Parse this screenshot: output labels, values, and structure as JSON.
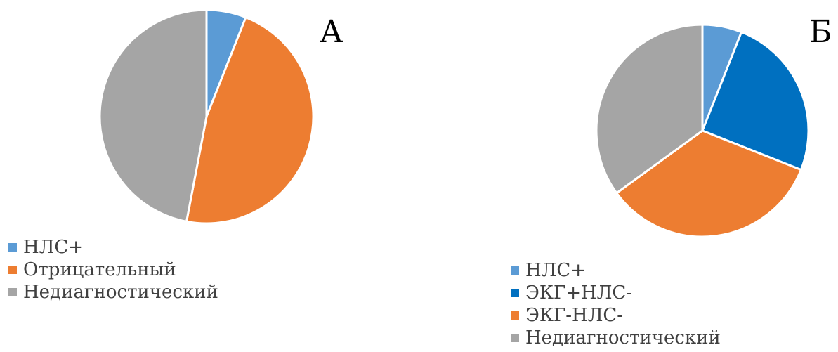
{
  "chart_data": [
    {
      "type": "pie",
      "title": "А",
      "labels": [
        "НЛС+",
        "Отрицательный",
        "Недиагностический"
      ],
      "values": [
        6,
        47,
        47
      ],
      "colors": [
        "#5B9BD5",
        "#ED7D31",
        "#A5A5A5"
      ],
      "start_angle": "12 o'clock",
      "direction": "clockwise",
      "legend": "bottom-left"
    },
    {
      "type": "pie",
      "title": "Б",
      "labels": [
        "НЛС+",
        "ЭКГ+НЛС-",
        "ЭКГ-НЛС-",
        "Недиагностический"
      ],
      "values": [
        6,
        25,
        34,
        35
      ],
      "colors": [
        "#5B9BD5",
        "#0070C0",
        "#ED7D31",
        "#A5A5A5"
      ],
      "start_angle": "12 o'clock",
      "direction": "clockwise",
      "legend": "bottom-left"
    }
  ]
}
